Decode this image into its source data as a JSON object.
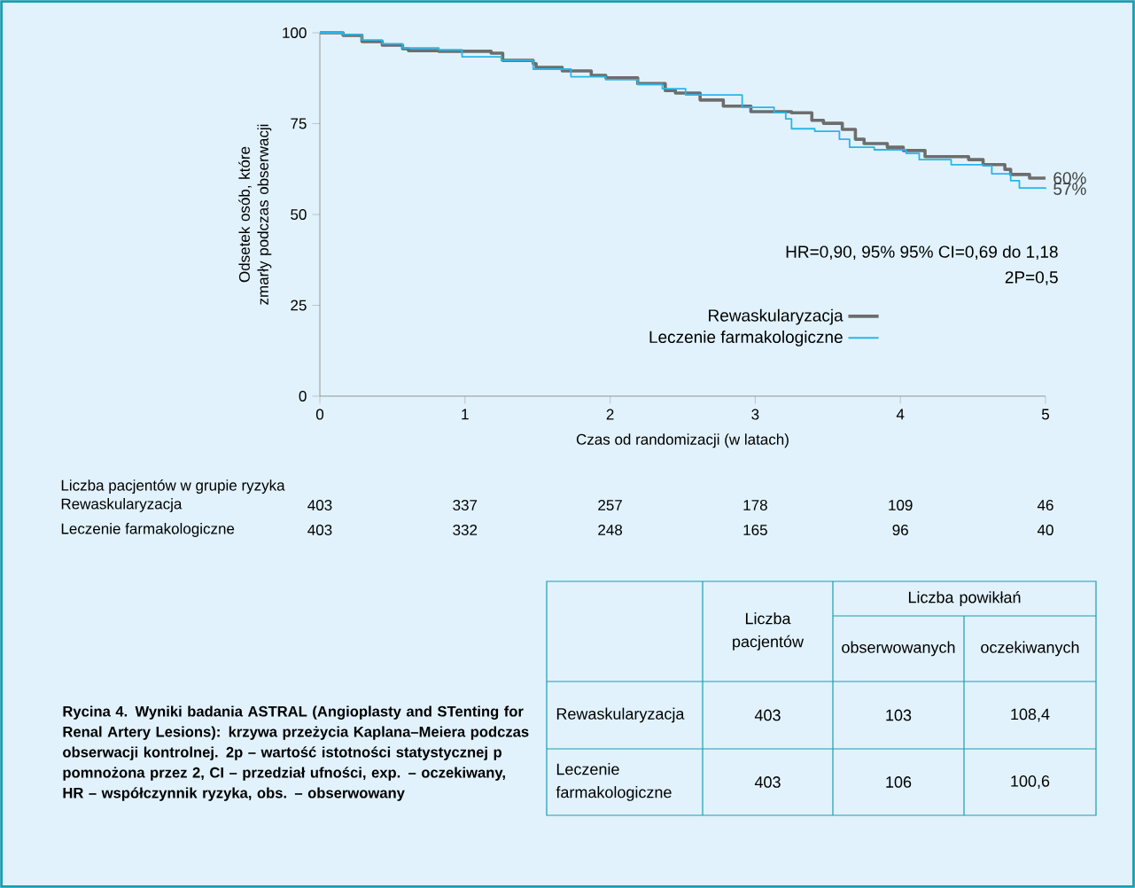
{
  "chart_data": [
    {
      "type": "step",
      "xlabel": "Czas od randomizacji (w latach)",
      "ylabel": "Odsetek osób, które zmarły podczas obserwacji",
      "xlim": [
        0,
        5
      ],
      "ylim": [
        0,
        100
      ],
      "xticks": [
        0,
        1,
        2,
        3,
        4,
        5
      ],
      "yticks": [
        0,
        25,
        50,
        75,
        100
      ],
      "legend": "bottom right",
      "series": [
        {
          "name": "Rewaskularyzacja",
          "color": "#6d6d6d",
          "x": [
            0,
            0.09,
            0.16,
            0.29,
            0.43,
            0.57,
            0.61,
            0.82,
            1.18,
            1.26,
            1.47,
            1.49,
            1.67,
            1.87,
            1.97,
            2.19,
            2.38,
            2.45,
            2.62,
            2.78,
            2.97,
            3.25,
            3.39,
            3.47,
            3.6,
            3.69,
            3.75,
            3.91,
            4.02,
            4.17,
            4.47,
            4.57,
            4.72,
            4.76,
            4.89,
            5
          ],
          "values": [
            100,
            100,
            99.3,
            97.6,
            96.6,
            95.6,
            95.1,
            94.9,
            94.4,
            92.4,
            91.5,
            90.5,
            89.5,
            88.3,
            87.6,
            86.0,
            84.1,
            83.4,
            81.5,
            79.8,
            78.3,
            78.0,
            75.9,
            75.1,
            73.4,
            70.7,
            69.5,
            68.5,
            67.6,
            65.9,
            65.1,
            63.7,
            62.4,
            61.0,
            60,
            60
          ]
        },
        {
          "name": "Leczenie farmakologiczne",
          "color": "#29b6e8",
          "x": [
            0,
            0.09,
            0.16,
            0.29,
            0.43,
            0.57,
            0.82,
            0.98,
            1.25,
            1.47,
            1.73,
            1.97,
            2.19,
            2.36,
            2.52,
            2.91,
            3.13,
            3.21,
            3.25,
            3.41,
            3.58,
            3.65,
            3.82,
            4.04,
            4.13,
            4.35,
            4.57,
            4.63,
            4.76,
            4.82,
            5
          ],
          "values": [
            100,
            100,
            99.5,
            98.0,
            97.0,
            95.8,
            95.3,
            93.4,
            92.4,
            90.0,
            87.9,
            87.1,
            85.8,
            84.6,
            82.9,
            79.5,
            78.0,
            76.3,
            73.6,
            72.9,
            70.7,
            68.5,
            67.8,
            66.8,
            65.1,
            63.7,
            63.4,
            61.2,
            59.3,
            57.3,
            57
          ]
        }
      ],
      "annotations": [
        "Liczba pacjentów w grupie ryzyka",
        "Rewaskularyzacja",
        "403",
        "337",
        "257",
        "178",
        "109",
        "46",
        "Leczenie farmakologiczne",
        "403",
        "332",
        "248",
        "165",
        "96",
        "40",
        "HR=0,90, 95% 95% CI=0,69 do 1,18",
        "2P=0,5",
        {
          "text": "60%",
          "x": 5,
          "y": 60
        },
        {
          "text": "57%",
          "x": 5,
          "y": 57
        }
      ]
    },
    {
      "type": "other",
      "annotations": [
        "Rycina 4. Wyniki badania ASTRAL (Angioplasty and STenting for Renal Artery Lesions): krzywa przeżycia Kaplana–Meiera podczas obserwacji kontrolnej. 2p – wartość istotności statystycznej p pomnożona przez 2, CI – przedział ufności, exp. – oczekiwany, HR – współczynnik ryzyka, obs. – obserwowany",
        "Liczba pacjentów",
        "Liczba powikłań",
        "obserwowanych",
        "oczekiwanych",
        "Rewaskularyzacja",
        "403",
        "103",
        "108,4",
        "Leczenie farmakologiczne",
        "403",
        "106",
        "100,6"
      ]
    }
  ]
}
